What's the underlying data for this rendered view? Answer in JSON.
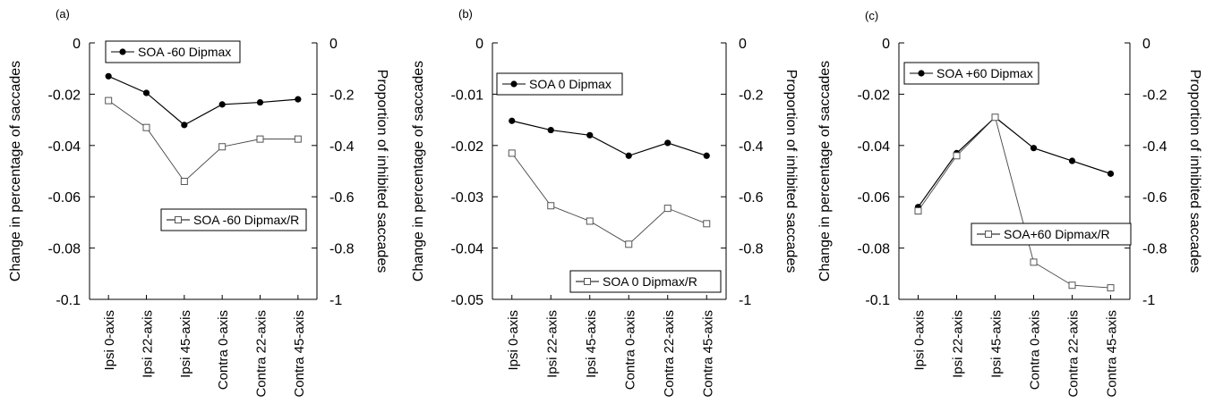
{
  "chart_data": [
    {
      "type": "line",
      "panel_label": "(a)",
      "categories": [
        "Ipsi 0-axis",
        "Ipsi 22-axis",
        "Ipsi 45-axis",
        "Contra 0-axis",
        "Contra 22-axis",
        "Contra 45-axis"
      ],
      "ylabel": "Change in percentage of saccades",
      "y2label": "Proportion of inhibited saccades",
      "ylim": [
        -0.1,
        0
      ],
      "yticks": [
        0,
        -0.02,
        -0.04,
        -0.06,
        -0.08,
        -0.1
      ],
      "ytick_labels": [
        "0",
        "-0.02",
        "-0.04",
        "-0.06",
        "-0.08",
        "-0.1"
      ],
      "y2lim": [
        -1,
        0
      ],
      "y2ticks": [
        0,
        -0.2,
        -0.4,
        -0.6,
        -0.8,
        -1
      ],
      "y2tick_labels": [
        "0",
        "-0.2",
        "-0.4",
        "-0.6",
        "-0.8",
        "-1"
      ],
      "series": [
        {
          "name": "SOA -60 Dipmax",
          "axis": "left",
          "marker": "filled-circle",
          "values": [
            -0.013,
            -0.0195,
            -0.032,
            -0.024,
            -0.0232,
            -0.022
          ]
        },
        {
          "name": "SOA -60 Dipmax/R",
          "axis": "right",
          "marker": "open-square",
          "values": [
            -0.225,
            -0.33,
            -0.54,
            -0.405,
            -0.375,
            -0.375
          ]
        }
      ]
    },
    {
      "type": "line",
      "panel_label": "(b)",
      "categories": [
        "Ipsi 0-axis",
        "Ipsi 22-axis",
        "Ipsi 45-axis",
        "Contra 0-axis",
        "Contra 22-axis",
        "Contra 45-axis"
      ],
      "ylabel": "Change in percentage of saccades",
      "y2label": "Proportion of inhibited saccades",
      "ylim": [
        -0.05,
        0
      ],
      "yticks": [
        0,
        -0.01,
        -0.02,
        -0.03,
        -0.04,
        -0.05
      ],
      "ytick_labels": [
        "0",
        "-0.01",
        "-0.02",
        "-0.03",
        "-0.04",
        "-0.05"
      ],
      "y2lim": [
        -1,
        0
      ],
      "y2ticks": [
        0,
        -0.2,
        -0.4,
        -0.6,
        -0.8,
        -1
      ],
      "y2tick_labels": [
        "0",
        "-0.2",
        "-0.4",
        "-0.6",
        "-0.8",
        "-1"
      ],
      "series": [
        {
          "name": "SOA 0 Dipmax",
          "axis": "left",
          "marker": "filled-circle",
          "values": [
            -0.0152,
            -0.017,
            -0.018,
            -0.022,
            -0.0195,
            -0.022
          ]
        },
        {
          "name": "SOA 0 Dipmax/R",
          "axis": "right",
          "marker": "open-square",
          "values": [
            -0.43,
            -0.635,
            -0.695,
            -0.785,
            -0.645,
            -0.705
          ]
        }
      ]
    },
    {
      "type": "line",
      "panel_label": "(c)",
      "categories": [
        "Ipsi 0-axis",
        "Ipsi 22-axis",
        "Ipsi 45-axis",
        "Contra 0-axis",
        "Contra 22-axis",
        "Contra 45-axis"
      ],
      "ylabel": "Change in percentage of saccades",
      "y2label": "Proportion of inhibited saccades",
      "ylim": [
        -0.1,
        0
      ],
      "yticks": [
        0,
        -0.02,
        -0.04,
        -0.06,
        -0.08,
        -0.1
      ],
      "ytick_labels": [
        "0",
        "-0.02",
        "-0.04",
        "-0.06",
        "-0.08",
        "-0.1"
      ],
      "y2lim": [
        -1,
        0
      ],
      "y2ticks": [
        0,
        -0.2,
        -0.4,
        -0.6,
        -0.8,
        -1
      ],
      "y2tick_labels": [
        "0",
        "-0.2",
        "-0.4",
        "-0.6",
        "-0.8",
        "-1"
      ],
      "series": [
        {
          "name": "SOA +60 Dipmax",
          "axis": "left",
          "marker": "filled-circle",
          "values": [
            -0.064,
            -0.043,
            -0.029,
            -0.041,
            -0.046,
            -0.051
          ]
        },
        {
          "name": "SOA+60 Dipmax/R",
          "axis": "right",
          "marker": "open-square",
          "values": [
            -0.655,
            -0.44,
            -0.29,
            -0.855,
            -0.945,
            -0.955
          ]
        }
      ]
    }
  ]
}
